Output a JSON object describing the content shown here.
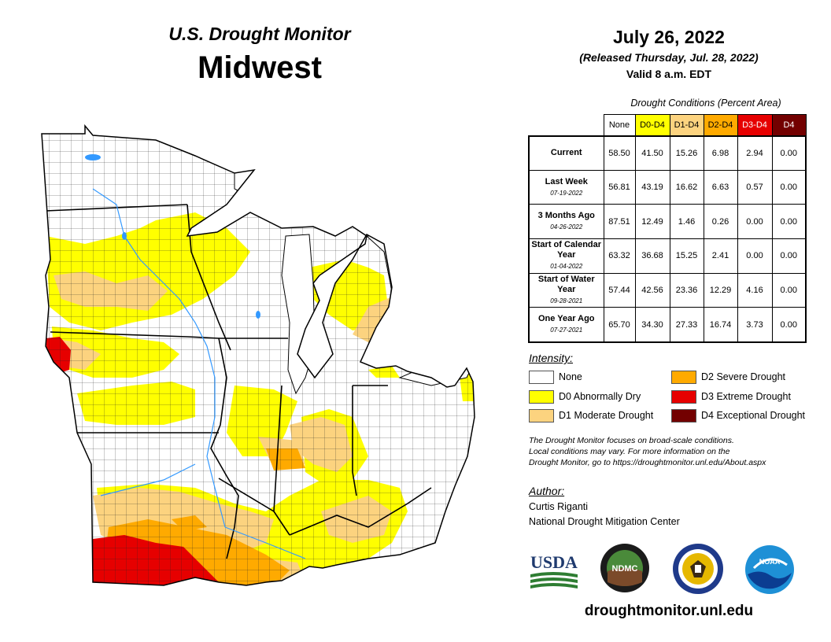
{
  "header": {
    "subtitle": "U.S. Drought Monitor",
    "title": "Midwest",
    "date": "July 26, 2022",
    "released": "(Released Thursday, Jul. 28, 2022)",
    "valid": "Valid 8 a.m. EDT"
  },
  "table": {
    "caption": "Drought Conditions (Percent Area)",
    "columns": [
      "None",
      "D0-D4",
      "D1-D4",
      "D2-D4",
      "D3-D4",
      "D4"
    ],
    "rows": [
      {
        "label": "Current",
        "date": "",
        "values": [
          "58.50",
          "41.50",
          "15.26",
          "6.98",
          "2.94",
          "0.00"
        ]
      },
      {
        "label": "Last Week",
        "date": "07-19-2022",
        "values": [
          "56.81",
          "43.19",
          "16.62",
          "6.63",
          "0.57",
          "0.00"
        ]
      },
      {
        "label": "3 Months Ago",
        "date": "04-26-2022",
        "values": [
          "87.51",
          "12.49",
          "1.46",
          "0.26",
          "0.00",
          "0.00"
        ]
      },
      {
        "label": "Start of Calendar Year",
        "date": "01-04-2022",
        "values": [
          "63.32",
          "36.68",
          "15.25",
          "2.41",
          "0.00",
          "0.00"
        ]
      },
      {
        "label": "Start of Water Year",
        "date": "09-28-2021",
        "values": [
          "57.44",
          "42.56",
          "23.36",
          "12.29",
          "4.16",
          "0.00"
        ]
      },
      {
        "label": "One Year Ago",
        "date": "07-27-2021",
        "values": [
          "65.70",
          "34.30",
          "27.33",
          "16.74",
          "3.73",
          "0.00"
        ]
      }
    ]
  },
  "legend": {
    "title": "Intensity:",
    "items": [
      {
        "label": "None",
        "color": "#ffffff"
      },
      {
        "label": "D0 Abnormally Dry",
        "color": "#ffff00"
      },
      {
        "label": "D1 Moderate Drought",
        "color": "#fcd37f"
      },
      {
        "label": "D2 Severe Drought",
        "color": "#ffaa00"
      },
      {
        "label": "D3 Extreme Drought",
        "color": "#e60000"
      },
      {
        "label": "D4 Exceptional Drought",
        "color": "#730000"
      }
    ]
  },
  "note": {
    "line1": "The Drought Monitor focuses on broad-scale conditions.",
    "line2": "Local conditions may vary. For more information on the",
    "line3": "Drought Monitor, go to https://droughtmonitor.unl.edu/About.aspx"
  },
  "author": {
    "title": "Author:",
    "name": "Curtis Riganti",
    "org": "National Drought Mitigation Center"
  },
  "logos": {
    "usda": "USDA",
    "ndmc": "NDMC",
    "noaa": "NOAA"
  },
  "site": "droughtmonitor.unl.edu"
}
